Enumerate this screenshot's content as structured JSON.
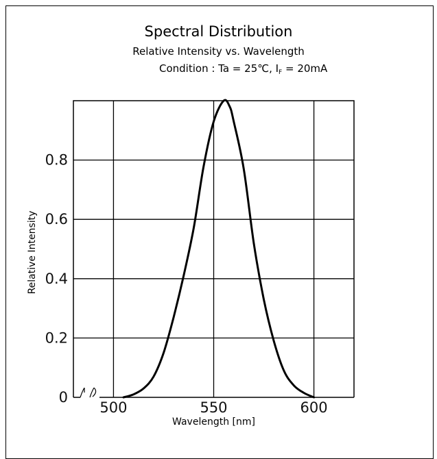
{
  "chart_data": {
    "type": "line",
    "title": "Spectral Distribution",
    "subtitle": "Relative Intensity vs. Wavelength",
    "condition": {
      "prefix": "Condition : Ta = 25℃, I",
      "subscript": "F",
      "suffix": " = 20mA"
    },
    "xlabel": "Wavelength [nm]",
    "ylabel": "Relative Intensity",
    "xlim": [
      480,
      620
    ],
    "ylim": [
      0,
      1.0
    ],
    "x_ticks": [
      500,
      550,
      600
    ],
    "y_ticks": [
      0,
      0.2,
      0.4,
      0.6,
      0.8
    ],
    "y_tick_labels": [
      "0",
      "0.2",
      "0.4",
      "0.6",
      "0.8"
    ],
    "grid": true,
    "axis_break": true,
    "series": [
      {
        "color": "#000000",
        "x": [
          505,
          510,
          515,
          520,
          525,
          530,
          535,
          540,
          545,
          550,
          555,
          558,
          560,
          565,
          570,
          575,
          580,
          585,
          590,
          595,
          600
        ],
        "y": [
          0.0,
          0.01,
          0.03,
          0.07,
          0.15,
          0.27,
          0.41,
          0.57,
          0.78,
          0.93,
          1.0,
          0.98,
          0.93,
          0.77,
          0.52,
          0.33,
          0.19,
          0.09,
          0.04,
          0.015,
          0.0
        ]
      }
    ]
  }
}
